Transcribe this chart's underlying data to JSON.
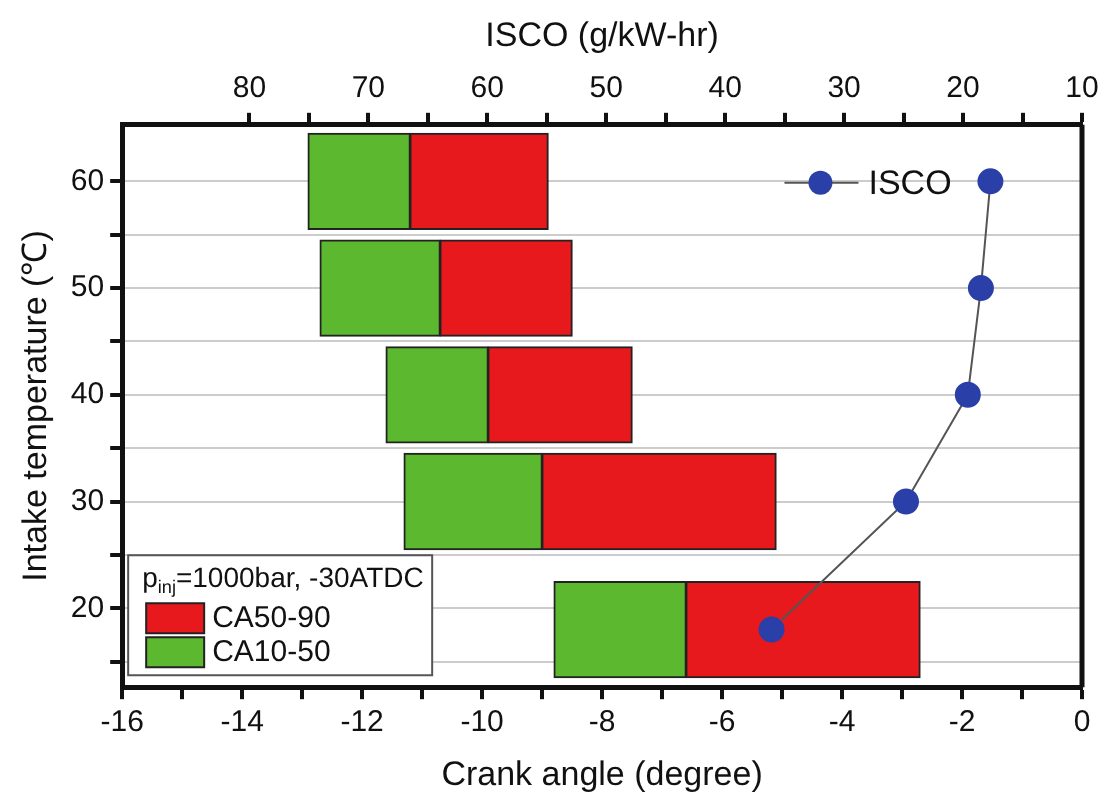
{
  "chart_data": {
    "type": "bar",
    "orientation": "horizontal",
    "legend": "bottom left",
    "legend_title": "p$_{inj}$=1000bar, -30ATDC",
    "grid": "y",
    "xlabel": "Crank angle (degree)",
    "ylabel": "Intake temperature (℃)",
    "x2label": "ISCO (g/kW-hr)",
    "x": [
      60,
      50,
      40,
      30,
      18
    ],
    "series": [
      {
        "name": "CA10-50",
        "color": "#5cb82e",
        "base": [
          -12.9,
          -12.7,
          -11.6,
          -11.3,
          -8.8
        ],
        "values": [
          1.7,
          2.0,
          1.7,
          2.3,
          2.2
        ]
      },
      {
        "name": "CA50-90",
        "color": "#e8191c",
        "base": [
          -11.2,
          -10.7,
          -9.9,
          -9.0,
          -6.6
        ],
        "values": [
          2.3,
          2.2,
          2.4,
          3.9,
          3.9
        ]
      },
      {
        "name": "ISCO",
        "type": "line",
        "axis": "x2",
        "color": "#2a3fa8",
        "marker": "circle",
        "values": [
          17.7,
          18.5,
          19.6,
          24.8,
          36.1
        ]
      }
    ],
    "xlim": [
      -16,
      0
    ],
    "xticks": [
      -16,
      {
        "value": -15,
        "label": null
      },
      -14,
      {
        "value": -13,
        "label": null
      },
      -12,
      {
        "value": -11,
        "label": null
      },
      -10,
      {
        "value": -9,
        "label": null
      },
      -8,
      {
        "value": -7,
        "label": null
      },
      -6,
      {
        "value": -5,
        "label": null
      },
      -4,
      {
        "value": -3,
        "label": null
      },
      -2,
      {
        "value": -1,
        "label": null
      },
      0
    ],
    "x2lim": [
      90.7,
      10
    ],
    "x2ticks": [
      80,
      {
        "value": 75,
        "label": null
      },
      70,
      {
        "value": 65,
        "label": null
      },
      60,
      {
        "value": 55,
        "label": null
      },
      50,
      {
        "value": 45,
        "label": null
      },
      40,
      {
        "value": 35,
        "label": null
      },
      30,
      {
        "value": 25,
        "label": null
      },
      20,
      {
        "value": 15,
        "label": null
      },
      10
    ],
    "ylim": [
      12.6,
      65.3
    ],
    "yticks": [
      {
        "value": 15,
        "label": null
      },
      20,
      {
        "value": 25,
        "label": null
      },
      30,
      {
        "value": 35,
        "label": null
      },
      40,
      {
        "value": 45,
        "label": null
      },
      50,
      {
        "value": 55,
        "label": null
      },
      60
    ]
  }
}
